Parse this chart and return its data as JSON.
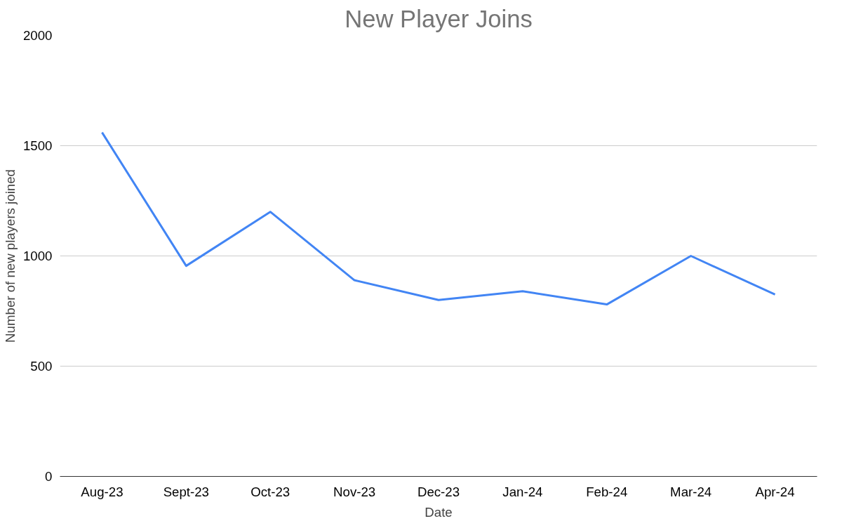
{
  "chart_data": {
    "type": "line",
    "title": "New Player Joins",
    "xlabel": "Date",
    "ylabel": "Number of new players joined",
    "categories": [
      "Aug-23",
      "Sept-23",
      "Oct-23",
      "Nov-23",
      "Dec-23",
      "Jan-24",
      "Feb-24",
      "Mar-24",
      "Apr-24"
    ],
    "series": [
      {
        "color": "#4285f4",
        "values": [
          1560,
          955,
          1200,
          890,
          800,
          840,
          780,
          1000,
          825
        ]
      }
    ],
    "ylim": [
      0,
      2000
    ],
    "yticks": [
      0,
      500,
      1000,
      1500,
      2000
    ],
    "grid": "y",
    "marker": "none",
    "line_style": "solid"
  }
}
